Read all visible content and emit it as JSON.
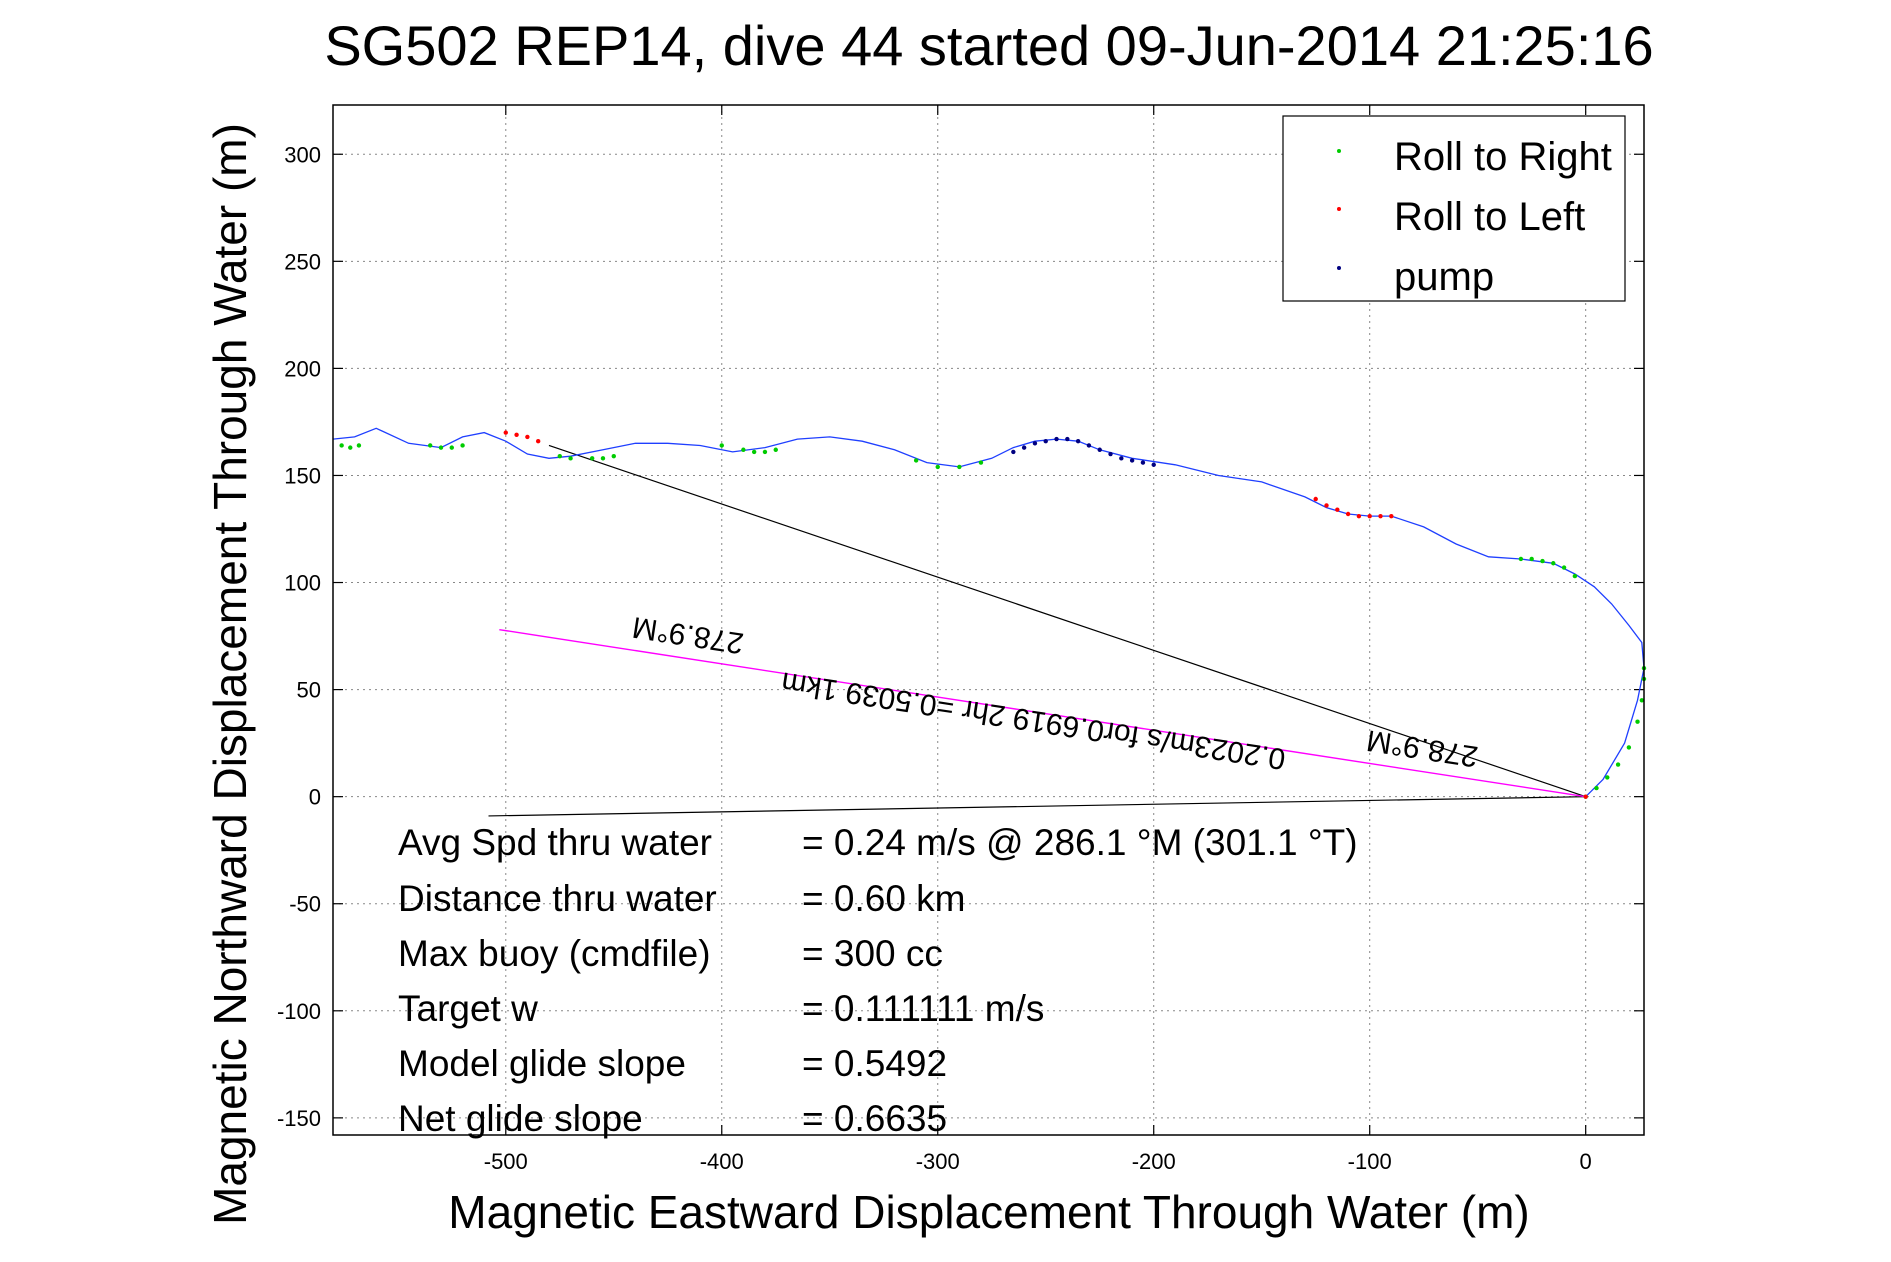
{
  "chart_data": {
    "type": "scatter",
    "title": "SG502 REP14, dive 44 started 09-Jun-2014 21:25:16",
    "xlabel": "Magnetic Eastward Displacement Through Water (m)",
    "ylabel": "Magnetic Northward Displacement Through Water (m)",
    "xlim": [
      -580,
      27
    ],
    "ylim": [
      -158,
      323
    ],
    "xticks": [
      -500,
      -400,
      -300,
      -200,
      -100,
      0
    ],
    "yticks": [
      -150,
      -100,
      -50,
      0,
      50,
      100,
      150,
      200,
      250,
      300
    ],
    "grid": true,
    "legend_position": "top-right",
    "legend": [
      {
        "label": "Roll to Right",
        "color": "#00cc00"
      },
      {
        "label": "Roll to Left",
        "color": "#ff0000"
      },
      {
        "label": "pump",
        "color": "#000080"
      }
    ],
    "colors": {
      "track": "#1f3fff",
      "roll_right": "#00cc00",
      "roll_left": "#ff0000",
      "pump": "#000080",
      "net_line": "#000000",
      "current_line": "#ff00ff"
    },
    "track": {
      "x": [
        0,
        8,
        18,
        24,
        27,
        26,
        20,
        12,
        4,
        -5,
        -15,
        -30,
        -45,
        -60,
        -75,
        -90,
        -100,
        -110,
        -120,
        -130,
        -150,
        -170,
        -190,
        -210,
        -225,
        -235,
        -245,
        -255,
        -265,
        -275,
        -290,
        -305,
        -320,
        -335,
        -350,
        -365,
        -380,
        -395,
        -410,
        -425,
        -440,
        -455,
        -470,
        -480,
        -490,
        -500,
        -510,
        -520,
        -530,
        -545,
        -560,
        -570,
        -580
      ],
      "y": [
        0,
        8,
        25,
        45,
        60,
        72,
        80,
        90,
        98,
        104,
        109,
        111,
        112,
        118,
        126,
        131,
        131,
        132,
        135,
        140,
        147,
        150,
        155,
        158,
        162,
        166,
        167,
        166,
        163,
        158,
        154,
        156,
        162,
        166,
        168,
        167,
        163,
        161,
        164,
        165,
        165,
        162,
        159,
        158,
        160,
        166,
        170,
        168,
        163,
        165,
        172,
        168,
        167
      ]
    },
    "roll_right_points": {
      "x": [
        0,
        5,
        10,
        15,
        20,
        24,
        26,
        27,
        27,
        -5,
        -10,
        -15,
        -20,
        -25,
        -30,
        -280,
        -290,
        -300,
        -310,
        -375,
        -380,
        -385,
        -390,
        -400,
        -450,
        -455,
        -460,
        -470,
        -475,
        -520,
        -525,
        -530,
        -535,
        -568,
        -572,
        -576
      ],
      "y": [
        0,
        4,
        9,
        15,
        23,
        35,
        45,
        55,
        60,
        103,
        107,
        109,
        110,
        111,
        111,
        156,
        154,
        154,
        157,
        162,
        161,
        161,
        162,
        164,
        159,
        158,
        158,
        158,
        159,
        164,
        163,
        163,
        164,
        164,
        163,
        164
      ]
    },
    "roll_left_points": {
      "x": [
        -90,
        -95,
        -100,
        -105,
        -110,
        -115,
        -120,
        -125,
        -485,
        -490,
        -495,
        -500,
        0
      ],
      "y": [
        131,
        131,
        131,
        131,
        132,
        134,
        136,
        139,
        166,
        168,
        169,
        170,
        0
      ]
    },
    "pump_points": {
      "x": [
        -200,
        -205,
        -210,
        -215,
        -220,
        -225,
        -230,
        -235,
        -240,
        -245,
        -250,
        -255,
        -260,
        -265
      ],
      "y": [
        155,
        156,
        157,
        158,
        160,
        162,
        164,
        166,
        167,
        167,
        166,
        165,
        163,
        161
      ]
    },
    "net_line": {
      "x": [
        0,
        -480
      ],
      "y": [
        0,
        164
      ]
    },
    "current_line": {
      "x": [
        0,
        -503
      ],
      "y": [
        0,
        78
      ]
    },
    "bottom_line": {
      "x": [
        0,
        -508
      ],
      "y": [
        0,
        -9
      ]
    },
    "rotated_labels": [
      {
        "text": "278.9°M",
        "x": -415,
        "y": 80
      },
      {
        "text": "0.2023m/s for0.6919 2hr =0.5039 1km",
        "x": -255,
        "y": 40
      },
      {
        "text": "278.9°M",
        "x": -75,
        "y": 27
      }
    ],
    "stats": [
      {
        "label": "Avg Spd thru water",
        "value": "=  0.24 m/s @ 286.1 °M (301.1 °T)"
      },
      {
        "label": "Distance thru water",
        "value": "=  0.60 km"
      },
      {
        "label": "Max buoy (cmdfile)",
        "value": "= 300 cc"
      },
      {
        "label": "Target w",
        "value": "= 0.111111 m/s"
      },
      {
        "label": "Model glide slope",
        "value": "= 0.5492"
      },
      {
        "label": "Net glide slope",
        "value": "= 0.6635"
      }
    ]
  }
}
